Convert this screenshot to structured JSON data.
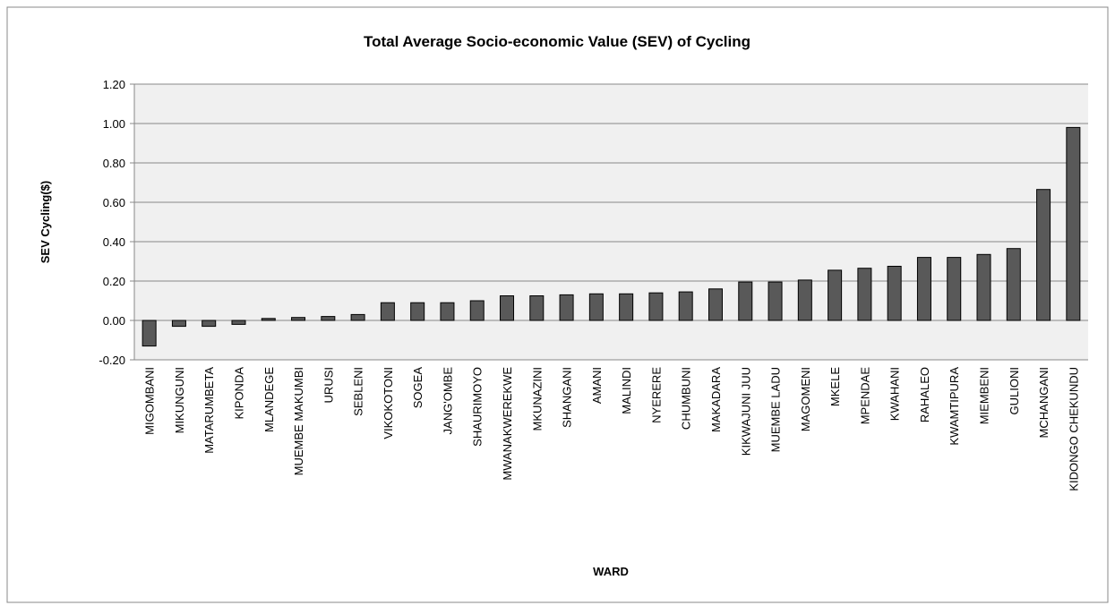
{
  "chart_data": {
    "type": "bar",
    "title": "Total Average Socio-economic Value (SEV) of Cycling",
    "x_label": "WARD",
    "y_label": "SEV  Cycling($)",
    "categories": [
      "MIGOMBANI",
      "MIKUNGUNI",
      "MATARUMBETA",
      "KIPONDA",
      "MLANDEGE",
      "MUEMBE MAKUMBI",
      "URUSI",
      "SEBLENI",
      "VIKOKOTONI",
      "SOGEA",
      "JANG'OMBE",
      "SHAURIMOYO",
      "MWANAKWEREKWE",
      "MKUNAZINI",
      "SHANGANI",
      "AMANI",
      "MALINDI",
      "NYERERE",
      "CHUMBUNI",
      "MAKADARA",
      "KIKWAJUNI JUU",
      "MUEMBE LADU",
      "MAGOMENI",
      "MKELE",
      "MPENDAE",
      "KWAHANI",
      "RAHALEO",
      "KWAMTIPURA",
      "MIEMBENI",
      "GULIONI",
      "MCHANGANI",
      "KIDONGO CHEKUNDU"
    ],
    "values": [
      -0.13,
      -0.03,
      -0.03,
      -0.02,
      0.01,
      0.015,
      0.02,
      0.03,
      0.09,
      0.09,
      0.09,
      0.1,
      0.125,
      0.125,
      0.13,
      0.135,
      0.135,
      0.14,
      0.145,
      0.16,
      0.195,
      0.195,
      0.205,
      0.255,
      0.265,
      0.275,
      0.32,
      0.32,
      0.335,
      0.365,
      0.665,
      0.98
    ],
    "color": "#595959",
    "ylim": [
      -0.2,
      1.2
    ],
    "yticks": [
      {
        "value": -0.2,
        "label": "-0.20"
      },
      {
        "value": 0,
        "label": "0.00"
      },
      {
        "value": 0.2,
        "label": "0.20"
      },
      {
        "value": 0.4,
        "label": "0.40"
      },
      {
        "value": 0.6,
        "label": "0.60"
      },
      {
        "value": 0.8,
        "label": "0.80"
      },
      {
        "value": 1.0,
        "label": "1.00"
      },
      {
        "value": 1.2,
        "label": "1.20"
      }
    ],
    "grid": true
  }
}
